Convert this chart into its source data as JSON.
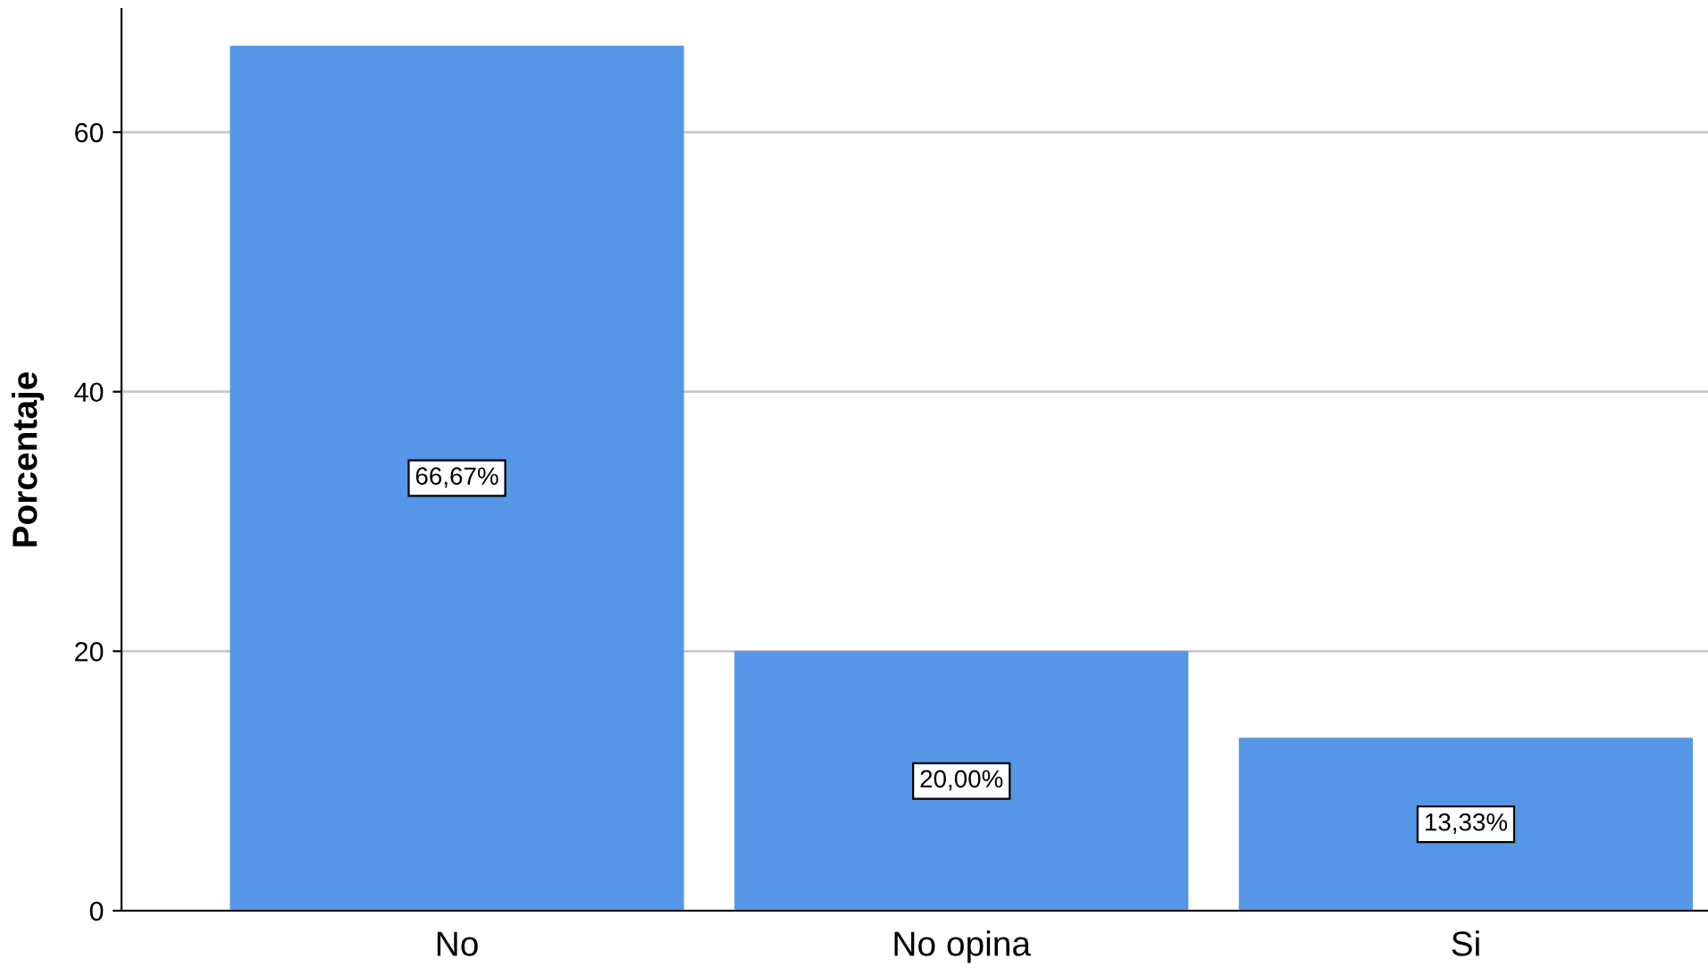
{
  "chart_data": {
    "type": "bar",
    "ylabel": "Porcentaje",
    "categories": [
      "No",
      "No opina",
      "Si"
    ],
    "values": [
      66.67,
      20.0,
      13.33
    ],
    "value_labels": [
      "66,67%",
      "20,00%",
      "13,33%"
    ],
    "color": "#5596e6",
    "ylim": [
      0,
      69.5
    ],
    "yticks": [
      0,
      20,
      40,
      60
    ],
    "grid": "y",
    "legend": false
  }
}
